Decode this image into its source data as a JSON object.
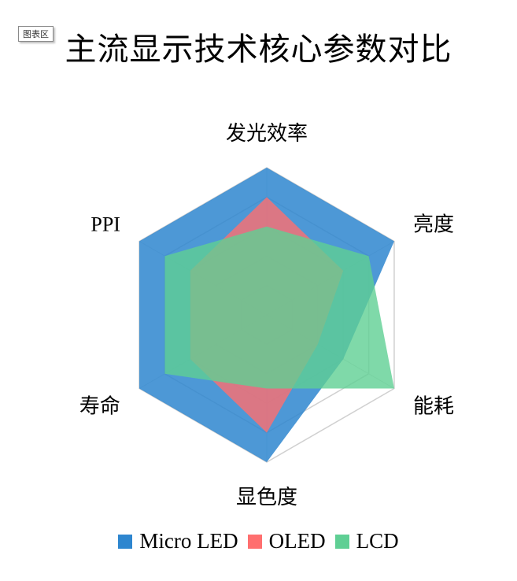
{
  "area_tag": "图表区",
  "chart_data": {
    "type": "radar",
    "title": "主流显示技术核心参数对比",
    "axes": [
      "发光效率",
      "亮度",
      "能耗",
      "显色度",
      "寿命",
      "PPI"
    ],
    "rlim": [
      0,
      10
    ],
    "rings": 5,
    "series": [
      {
        "name": "Micro LED",
        "color": "#2E86CF",
        "values": [
          10,
          10,
          6,
          10,
          10,
          10
        ]
      },
      {
        "name": "OLED",
        "color": "#FF6F6F",
        "values": [
          8,
          6,
          4,
          8,
          6,
          6
        ]
      },
      {
        "name": "LCD",
        "color": "#5FCF94",
        "values": [
          6,
          8,
          10,
          5,
          8,
          8
        ]
      }
    ],
    "legend_position": "bottom"
  }
}
